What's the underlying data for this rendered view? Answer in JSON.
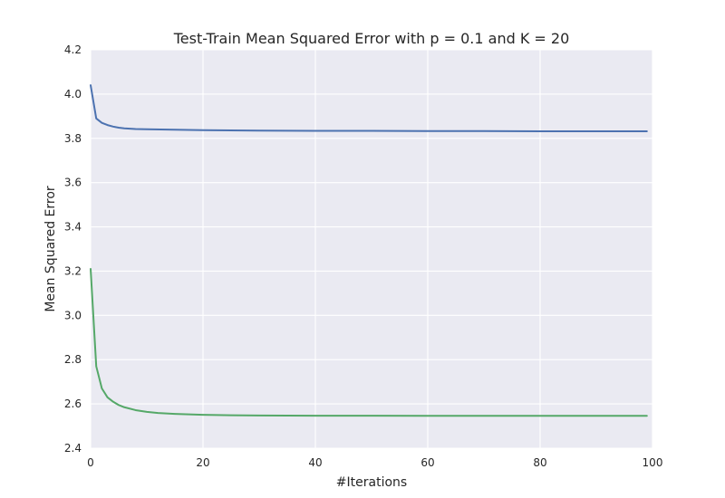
{
  "chart_data": {
    "type": "line",
    "title": "Test-Train Mean Squared Error with p = 0.1 and K = 20",
    "xlabel": "#Iterations",
    "ylabel": "Mean Squared Error",
    "xlim": [
      0,
      100
    ],
    "ylim": [
      2.4,
      4.2
    ],
    "x_ticks": [
      0,
      20,
      40,
      60,
      80,
      100
    ],
    "y_ticks": [
      2.4,
      2.6,
      2.8,
      3.0,
      3.2,
      3.4,
      3.6,
      3.8,
      4.0,
      4.2
    ],
    "x_tick_labels": [
      "0",
      "20",
      "40",
      "60",
      "80",
      "100"
    ],
    "y_tick_labels": [
      "2.4",
      "2.6",
      "2.8",
      "3.0",
      "3.2",
      "3.4",
      "3.6",
      "3.8",
      "4.0",
      "4.2"
    ],
    "grid": true,
    "series": [
      {
        "color": "#4c72b0",
        "x": [
          0,
          1,
          2,
          3,
          4,
          5,
          6,
          8,
          10,
          15,
          20,
          30,
          40,
          50,
          60,
          70,
          80,
          90,
          99
        ],
        "y": [
          4.04,
          3.89,
          3.87,
          3.86,
          3.853,
          3.848,
          3.845,
          3.842,
          3.841,
          3.839,
          3.837,
          3.835,
          3.834,
          3.834,
          3.833,
          3.833,
          3.832,
          3.832,
          3.832
        ]
      },
      {
        "color": "#55a868",
        "x": [
          0,
          1,
          2,
          3,
          4,
          5,
          6,
          8,
          10,
          12,
          15,
          20,
          25,
          30,
          40,
          50,
          60,
          70,
          80,
          90,
          99
        ],
        "y": [
          3.21,
          2.77,
          2.67,
          2.63,
          2.61,
          2.595,
          2.585,
          2.572,
          2.564,
          2.559,
          2.555,
          2.551,
          2.549,
          2.548,
          2.547,
          2.547,
          2.546,
          2.546,
          2.546,
          2.546,
          2.546
        ]
      }
    ]
  }
}
